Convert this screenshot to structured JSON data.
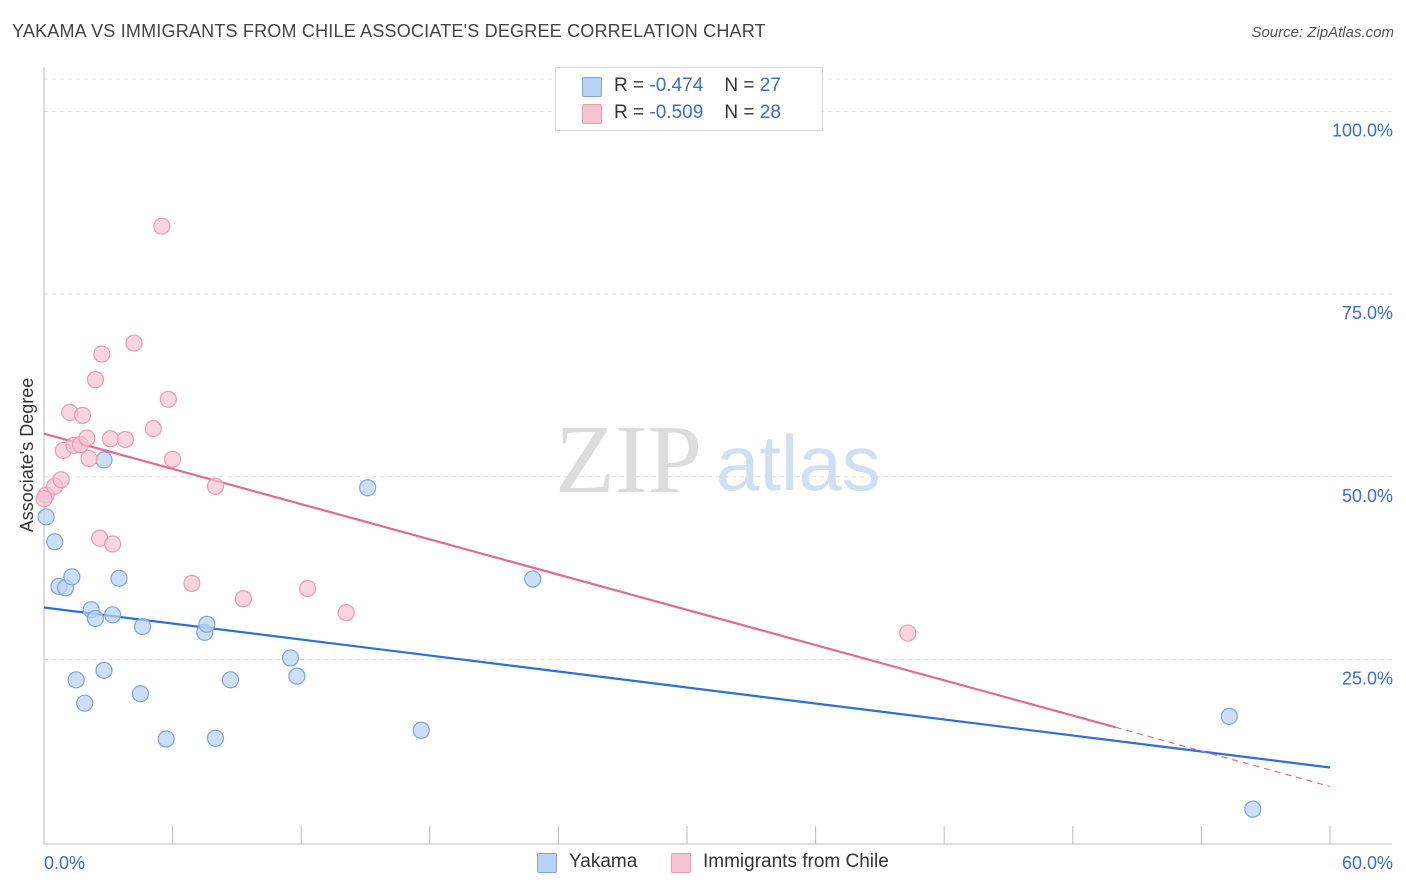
{
  "title": "YAKAMA VS IMMIGRANTS FROM CHILE ASSOCIATE'S DEGREE CORRELATION CHART",
  "source": "Source: ZipAtlas.com",
  "watermark": {
    "zip": "ZIP",
    "atlas": "atlas"
  },
  "colors": {
    "yakama_fill": "#b8d2f3",
    "yakama_stroke": "#7aa6e0",
    "yakama_line": "#2f6fd6",
    "chile_fill": "#f7c3d2",
    "chile_stroke": "#ee9ab2",
    "chile_line": "#e06a92",
    "tick_label": "#3a6fd0",
    "grid": "#dedede"
  },
  "legend_top": {
    "rows": [
      {
        "r_label": "R =",
        "r_value": "-0.474",
        "n_label": "N =",
        "n_value": "27"
      },
      {
        "r_label": "R =",
        "r_value": "-0.509",
        "n_label": "N =",
        "n_value": "28"
      }
    ]
  },
  "legend_bottom": {
    "items": [
      "Yakama",
      "Immigrants from Chile"
    ]
  },
  "chart_data": {
    "type": "scatter",
    "title": "YAKAMA VS IMMIGRANTS FROM CHILE ASSOCIATE'S DEGREE CORRELATION CHART",
    "xlabel": "",
    "ylabel": "Associate's Degree",
    "xlim": [
      0,
      60
    ],
    "ylim": [
      0,
      105
    ],
    "x_tick_labels": [
      "0.0%",
      "60.0%"
    ],
    "y_ticks": [
      25,
      50,
      75,
      100
    ],
    "y_tick_labels": [
      "25.0%",
      "50.0%",
      "75.0%",
      "100.0%"
    ],
    "grid": true,
    "legend_position": "top-center",
    "series": [
      {
        "name": "Yakama",
        "r": -0.474,
        "n": 27,
        "trend": {
          "x": [
            0,
            60
          ],
          "y": [
            32.1,
            10.2
          ]
        },
        "points": [
          [
            0.1,
            44.5
          ],
          [
            0.5,
            41.1
          ],
          [
            0.7,
            35.0
          ],
          [
            1.0,
            34.8
          ],
          [
            1.3,
            36.3
          ],
          [
            1.5,
            22.2
          ],
          [
            1.9,
            19.0
          ],
          [
            2.2,
            31.8
          ],
          [
            2.4,
            30.6
          ],
          [
            2.8,
            23.5
          ],
          [
            3.2,
            31.1
          ],
          [
            3.5,
            36.1
          ],
          [
            2.8,
            52.3
          ],
          [
            4.6,
            29.5
          ],
          [
            4.5,
            20.3
          ],
          [
            5.7,
            14.1
          ],
          [
            7.5,
            28.7
          ],
          [
            7.6,
            29.8
          ],
          [
            8.0,
            14.2
          ],
          [
            8.7,
            22.2
          ],
          [
            11.5,
            25.2
          ],
          [
            11.8,
            22.7
          ],
          [
            15.1,
            48.5
          ],
          [
            17.6,
            15.3
          ],
          [
            22.8,
            36.0
          ],
          [
            55.3,
            17.2
          ],
          [
            56.4,
            4.5
          ]
        ]
      },
      {
        "name": "Immigrants from Chile",
        "r": -0.509,
        "n": 28,
        "trend": {
          "x": [
            0,
            50
          ],
          "y": [
            55.9,
            15.7
          ]
        },
        "trend_dashed": {
          "x": [
            50,
            60
          ],
          "y": [
            15.7,
            7.6
          ]
        },
        "points": [
          [
            0.1,
            47.5
          ],
          [
            0.5,
            48.7
          ],
          [
            0.8,
            49.6
          ],
          [
            0.9,
            53.6
          ],
          [
            1.2,
            58.8
          ],
          [
            1.4,
            54.3
          ],
          [
            1.7,
            54.4
          ],
          [
            1.8,
            58.4
          ],
          [
            2.0,
            55.3
          ],
          [
            2.1,
            52.5
          ],
          [
            2.4,
            63.3
          ],
          [
            2.6,
            41.6
          ],
          [
            2.7,
            66.8
          ],
          [
            3.1,
            55.2
          ],
          [
            3.2,
            40.8
          ],
          [
            3.8,
            55.1
          ],
          [
            4.2,
            68.3
          ],
          [
            5.1,
            56.6
          ],
          [
            5.5,
            84.3
          ],
          [
            5.8,
            60.6
          ],
          [
            6.0,
            52.4
          ],
          [
            6.9,
            35.4
          ],
          [
            8.0,
            48.7
          ],
          [
            9.3,
            33.3
          ],
          [
            12.3,
            34.7
          ],
          [
            14.1,
            31.4
          ],
          [
            40.3,
            28.6
          ],
          [
            0.0,
            47.0
          ]
        ]
      }
    ]
  }
}
